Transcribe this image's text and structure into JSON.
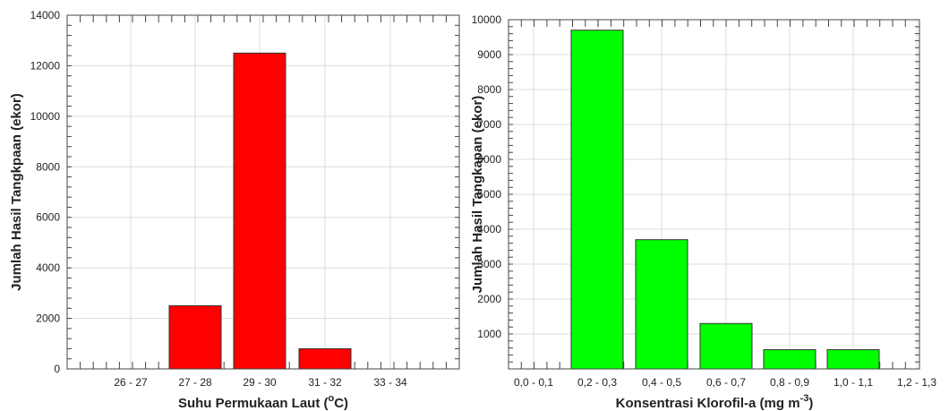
{
  "charts": [
    {
      "type": "bar",
      "color": "#ff0000",
      "ylabel": "Jumlah Hasil Tangkpaan (ekor)",
      "xlabel_prefix": "Suhu Permukaan Laut (",
      "xlabel_sup": "o",
      "xlabel_suffix": "C)",
      "ylim": [
        0,
        14000
      ],
      "yticks": [
        "0",
        "2000",
        "4000",
        "6000",
        "8000",
        "10000",
        "12000",
        "14000"
      ],
      "tick_labels": [
        "26 - 27",
        "27 - 28",
        "29 - 30",
        "31 - 32",
        "33 - 34"
      ],
      "bars": [
        {
          "category": "27 - 28",
          "value": 2500
        },
        {
          "category": "29 - 30",
          "value": 12500
        },
        {
          "category": "31 - 32",
          "value": 800
        }
      ]
    },
    {
      "type": "bar",
      "color": "#00ff00",
      "ylabel": "Jumlah Hasil Tangkapan (ekor)",
      "xlabel_prefix": "Konsentrasi Klorofil-a (mg m",
      "xlabel_sup": "-3",
      "xlabel_suffix": ")",
      "ylim": [
        0,
        10000
      ],
      "yticks": [
        "1000",
        "2000",
        "3000",
        "4000",
        "5000",
        "6000",
        "7000",
        "8000",
        "9000",
        "10000"
      ],
      "tick_labels": [
        "0,0  - 0,1",
        "0,2 - 0,3",
        "0,4 - 0,5",
        "0,6 - 0,7",
        "0,8 - 0,9",
        "1,0 - 1,1",
        "1,2 - 1,3"
      ],
      "bars": [
        {
          "category": "0,2 - 0,3",
          "value": 9700
        },
        {
          "category": "0,4 - 0,5",
          "value": 3700
        },
        {
          "category": "0,6 - 0,7",
          "value": 1300
        },
        {
          "category": "0,8 - 0,9",
          "value": 550
        },
        {
          "category": "1,0 - 1,1",
          "value": 550
        }
      ]
    }
  ]
}
